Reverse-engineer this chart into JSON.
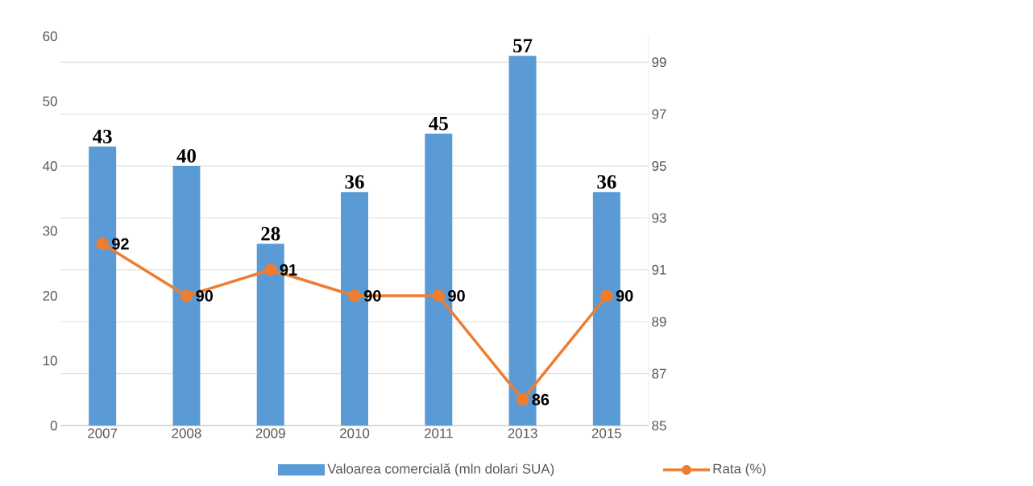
{
  "chart_data": {
    "type": "bar",
    "categories": [
      "2007",
      "2008",
      "2009",
      "2010",
      "2011",
      "2013",
      "2015"
    ],
    "series": [
      {
        "name": "Valoarea comercială (mln dolari SUA)",
        "color": "#5b9bd5",
        "values": [
          43,
          40,
          28,
          36,
          45,
          57,
          36
        ]
      },
      {
        "name": "Rata (%)",
        "type": "line",
        "axis": "y2",
        "color": "#ed7d31",
        "values": [
          92,
          90,
          91,
          90,
          90,
          86,
          90
        ]
      }
    ],
    "ylim": [
      0,
      60
    ],
    "yticks": [
      0,
      10,
      20,
      30,
      40,
      50,
      60
    ],
    "y2lim": [
      85,
      100
    ],
    "y2ticks": [
      85,
      87,
      89,
      91,
      93,
      95,
      97,
      99
    ],
    "grid": true,
    "legend": "bottom",
    "marker": "circle",
    "line_style": "solid",
    "data_labels": true
  }
}
